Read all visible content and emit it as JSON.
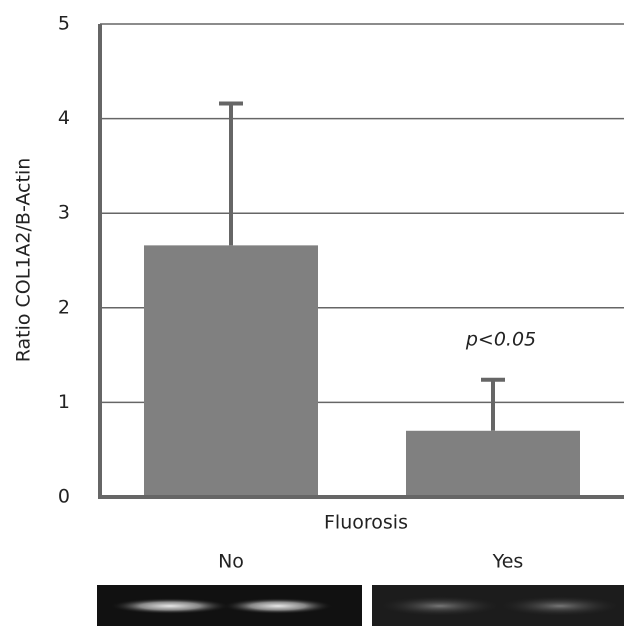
{
  "chart_data": {
    "type": "bar",
    "categories": [
      "No",
      "Yes"
    ],
    "values": [
      2.66,
      0.7
    ],
    "errors": [
      1.5,
      0.54
    ],
    "color": "#808080",
    "ylim": [
      0,
      5
    ],
    "yticks": [
      0,
      1,
      2,
      3,
      4,
      5
    ],
    "grid": true,
    "y_label": "Ratio COL1A2/B-Actin",
    "x_label": "Fluorosis",
    "annotation": "p<0.05"
  }
}
